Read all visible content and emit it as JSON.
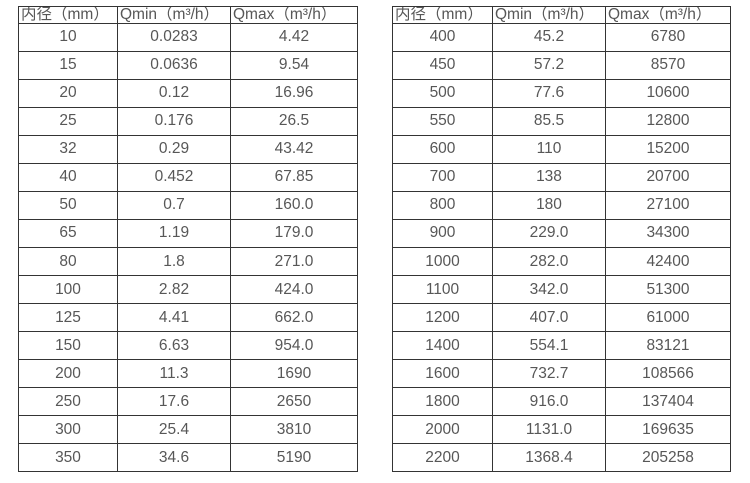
{
  "tables": [
    {
      "name": "small-diameter-flow-range",
      "headers": [
        "内径（mm）",
        "Qmin（m³/h）",
        "Qmax（m³/h）"
      ],
      "rows": [
        [
          "10",
          "0.0283",
          "4.42"
        ],
        [
          "15",
          "0.0636",
          "9.54"
        ],
        [
          "20",
          "0.12",
          "16.96"
        ],
        [
          "25",
          "0.176",
          "26.5"
        ],
        [
          "32",
          "0.29",
          "43.42"
        ],
        [
          "40",
          "0.452",
          "67.85"
        ],
        [
          "50",
          "0.7",
          "160.0"
        ],
        [
          "65",
          "1.19",
          "179.0"
        ],
        [
          "80",
          "1.8",
          "271.0"
        ],
        [
          "100",
          "2.82",
          "424.0"
        ],
        [
          "125",
          "4.41",
          "662.0"
        ],
        [
          "150",
          "6.63",
          "954.0"
        ],
        [
          "200",
          "11.3",
          "1690"
        ],
        [
          "250",
          "17.6",
          "2650"
        ],
        [
          "300",
          "25.4",
          "3810"
        ],
        [
          "350",
          "34.6",
          "5190"
        ]
      ]
    },
    {
      "name": "large-diameter-flow-range",
      "headers": [
        "内径（mm）",
        "Qmin（m³/h）",
        "Qmax（m³/h）"
      ],
      "rows": [
        [
          "400",
          "45.2",
          "6780"
        ],
        [
          "450",
          "57.2",
          "8570"
        ],
        [
          "500",
          "77.6",
          "10600"
        ],
        [
          "550",
          "85.5",
          "12800"
        ],
        [
          "600",
          "110",
          "15200"
        ],
        [
          "700",
          "138",
          "20700"
        ],
        [
          "800",
          "180",
          "27100"
        ],
        [
          "900",
          "229.0",
          "34300"
        ],
        [
          "1000",
          "282.0",
          "42400"
        ],
        [
          "1100",
          "342.0",
          "51300"
        ],
        [
          "1200",
          "407.0",
          "61000"
        ],
        [
          "1400",
          "554.1",
          "83121"
        ],
        [
          "1600",
          "732.7",
          "108566"
        ],
        [
          "1800",
          "916.0",
          "137404"
        ],
        [
          "2000",
          "1131.0",
          "169635"
        ],
        [
          "2200",
          "1368.4",
          "205258"
        ]
      ]
    }
  ],
  "colors": {
    "border": "#343434",
    "text": "#575757",
    "background": "#ffffff"
  }
}
